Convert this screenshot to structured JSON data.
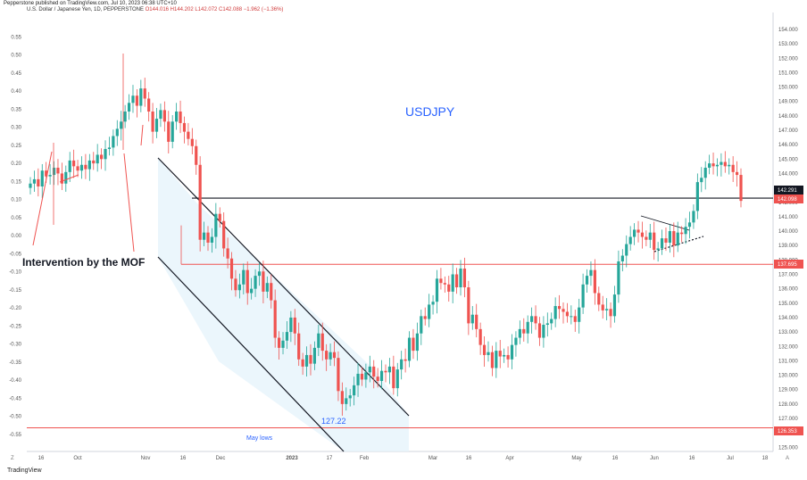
{
  "header": {
    "published": "Pepperstone published on TradingView.com, Jul 10, 2023 06:38 UTC+10",
    "symbol": "U.S. Dollar / Japanese Yen, 1D, PEPPERSTONE",
    "ohlc": "O144.016  H144.202  L142.072  C142.088  −1.962 (−1.36%)"
  },
  "footer": {
    "brand": "TradingView"
  },
  "colors": {
    "up": "#26a69a",
    "down": "#ef5350",
    "title": "#2962ff",
    "red_line": "#ef5350",
    "channel_fill": "#e6f4fb"
  },
  "chart_data": {
    "type": "candlestick",
    "title": "USDJPY",
    "right_axis_ticks": [
      "154.000",
      "153.000",
      "152.000",
      "151.000",
      "150.000",
      "149.000",
      "148.000",
      "147.000",
      "146.000",
      "145.000",
      "144.000",
      "143.000",
      "142.000",
      "141.000",
      "140.000",
      "139.000",
      "138.000",
      "137.000",
      "136.000",
      "135.000",
      "134.000",
      "133.000",
      "132.000",
      "131.000",
      "130.000",
      "129.000",
      "128.000",
      "127.000",
      "126.000",
      "125.000"
    ],
    "left_axis_ticks": [
      "0.55",
      "0.50",
      "0.45",
      "0.40",
      "0.35",
      "0.30",
      "0.25",
      "0.20",
      "0.15",
      "0.10",
      "0.05",
      "0.00",
      "-0.05",
      "-0.10",
      "-0.15",
      "-0.20",
      "-0.25",
      "-0.30",
      "-0.35",
      "-0.40",
      "-0.45",
      "-0.50",
      "-0.55"
    ],
    "x_axis_labels": [
      "16",
      "Oct",
      "Nov",
      "16",
      "Dec",
      "2023",
      "17",
      "Feb",
      "Mar",
      "16",
      "Apr",
      "May",
      "16",
      "Jun",
      "16",
      "Jul",
      "18"
    ],
    "price_labels": [
      {
        "text": "142.291",
        "value": 142.291,
        "color": "#131722"
      },
      {
        "text": "142.098",
        "value": 142.098,
        "color": "#ef5350"
      },
      {
        "text": "137.695",
        "value": 137.695,
        "color": "#ef5350"
      },
      {
        "text": "126.353",
        "value": 126.353,
        "color": "#ef5350"
      }
    ],
    "horizontal_lines": [
      {
        "value": 142.29,
        "color": "#131722",
        "label": "142.291"
      },
      {
        "value": 137.695,
        "color": "#ef5350",
        "label": "137.695"
      },
      {
        "value": 126.353,
        "color": "#ef5350",
        "label": "126.353"
      }
    ],
    "annotations": [
      {
        "text": "Intervention by the MOF"
      },
      {
        "text": "127.22"
      },
      {
        "text": "May lows"
      },
      {
        "text": "USDJPY"
      }
    ],
    "closes": [
      143.3,
      143.6,
      143.1,
      144.2,
      143.8,
      143.9,
      144.4,
      144.0,
      143.3,
      144.1,
      144.9,
      144.5,
      144.2,
      144.6,
      144.3,
      144.9,
      144.7,
      145.3,
      145.0,
      145.7,
      145.8,
      146.6,
      147.1,
      147.6,
      148.3,
      148.9,
      149.4,
      148.7,
      149.9,
      149.2,
      148.3,
      146.9,
      147.8,
      148.4,
      147.6,
      146.2,
      147.6,
      148.3,
      147.5,
      146.9,
      146.4,
      145.9,
      144.6,
      139.4,
      139.9,
      139.2,
      139.6,
      141.2,
      140.7,
      138.8,
      138.1,
      136.7,
      135.9,
      136.3,
      137.3,
      135.7,
      136.0,
      136.9,
      137.2,
      135.8,
      136.4,
      135.2,
      132.6,
      131.9,
      132.4,
      133.0,
      134.0,
      132.9,
      131.1,
      130.6,
      131.4,
      130.8,
      131.9,
      132.9,
      131.7,
      131.1,
      131.6,
      131.2,
      128.9,
      128.0,
      128.4,
      128.6,
      129.3,
      130.1,
      129.7,
      130.2,
      130.6,
      129.9,
      129.6,
      130.3,
      130.2,
      130.6,
      129.1,
      130.4,
      131.1,
      131.0,
      132.6,
      131.7,
      132.9,
      134.1,
      133.9,
      134.9,
      135.1,
      136.7,
      136.4,
      136.3,
      135.8,
      137.0,
      136.1,
      137.4,
      136.1,
      133.6,
      134.2,
      133.2,
      132.1,
      131.4,
      131.6,
      130.5,
      131.7,
      131.3,
      131.4,
      131.1,
      132.1,
      132.6,
      133.2,
      132.9,
      133.7,
      134.1,
      133.6,
      132.6,
      133.5,
      133.6,
      133.9,
      134.8,
      134.6,
      134.4,
      134.1,
      134.1,
      133.7,
      134.7,
      136.3,
      136.9,
      137.3,
      135.7,
      134.9,
      134.5,
      134.6,
      134.1,
      135.6,
      137.9,
      138.3,
      139.1,
      139.6,
      140.1,
      139.9,
      139.6,
      139.4,
      139.9,
      138.7,
      138.8,
      139.5,
      139.2,
      140.0,
      139.0,
      139.9,
      139.8,
      140.3,
      140.6,
      141.4,
      143.4,
      143.7,
      144.4,
      144.7,
      144.5,
      144.6,
      144.8,
      144.5,
      144.6,
      144.1,
      143.9,
      142.1
    ]
  }
}
